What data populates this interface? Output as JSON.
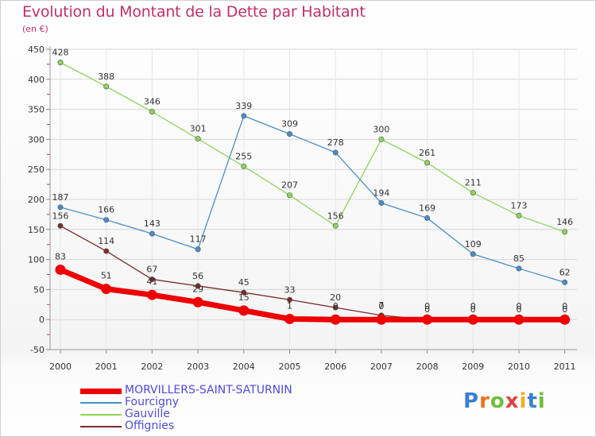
{
  "chart_data": {
    "type": "line",
    "title": "Evolution du Montant de la Dette par Habitant",
    "subtitle": "(en €)",
    "x": [
      "2000",
      "2001",
      "2002",
      "2003",
      "2004",
      "2005",
      "2006",
      "2007",
      "2008",
      "2009",
      "2010",
      "2011"
    ],
    "ylim": [
      -50,
      450
    ],
    "yticks": [
      "-50",
      "0",
      "50",
      "100",
      "150",
      "200",
      "250",
      "300",
      "350",
      "400",
      "450"
    ],
    "grid": true,
    "legend_position": "bottom-left",
    "series": [
      {
        "name": "MORVILLERS-SAINT-SATURNIN",
        "color": "#ee0000",
        "values": [
          83,
          51,
          41,
          29,
          15,
          1,
          0,
          0,
          0,
          0,
          0,
          0
        ],
        "labels": [
          "83",
          "51",
          "41",
          "29",
          "15",
          "1",
          "0",
          "0",
          "0",
          "0",
          "0",
          "0"
        ]
      },
      {
        "name": "Fourcigny",
        "color": "#4a8ec8",
        "values": [
          187,
          166,
          143,
          117,
          339,
          309,
          278,
          194,
          169,
          109,
          85,
          62
        ],
        "labels": [
          "187",
          "166",
          "143",
          "117",
          "339",
          "309",
          "278",
          "194",
          "169",
          "109",
          "85",
          "62"
        ]
      },
      {
        "name": "Gauville",
        "color": "#8dd45c",
        "values": [
          428,
          388,
          346,
          301,
          255,
          207,
          156,
          300,
          261,
          211,
          173,
          146
        ],
        "labels": [
          "428",
          "388",
          "346",
          "301",
          "255",
          "207",
          "156",
          "300",
          "261",
          "211",
          "173",
          "146"
        ]
      },
      {
        "name": "Offignies",
        "color": "#7b2a2a",
        "values": [
          156,
          114,
          67,
          56,
          45,
          33,
          20,
          7,
          0,
          0,
          0,
          0
        ],
        "labels": [
          "156",
          "114",
          "67",
          "56",
          "45",
          "33",
          "20",
          "7",
          "0",
          "0",
          "0",
          "0"
        ]
      }
    ]
  },
  "logo": {
    "letters": [
      "P",
      "r",
      "o",
      "x",
      "i",
      "t",
      "i"
    ],
    "colors": [
      "#3a7fd0",
      "#e8731c",
      "#6cbf3a",
      "#e04040",
      "#f0b020",
      "#3a7fd0",
      "#6cbf3a"
    ]
  }
}
